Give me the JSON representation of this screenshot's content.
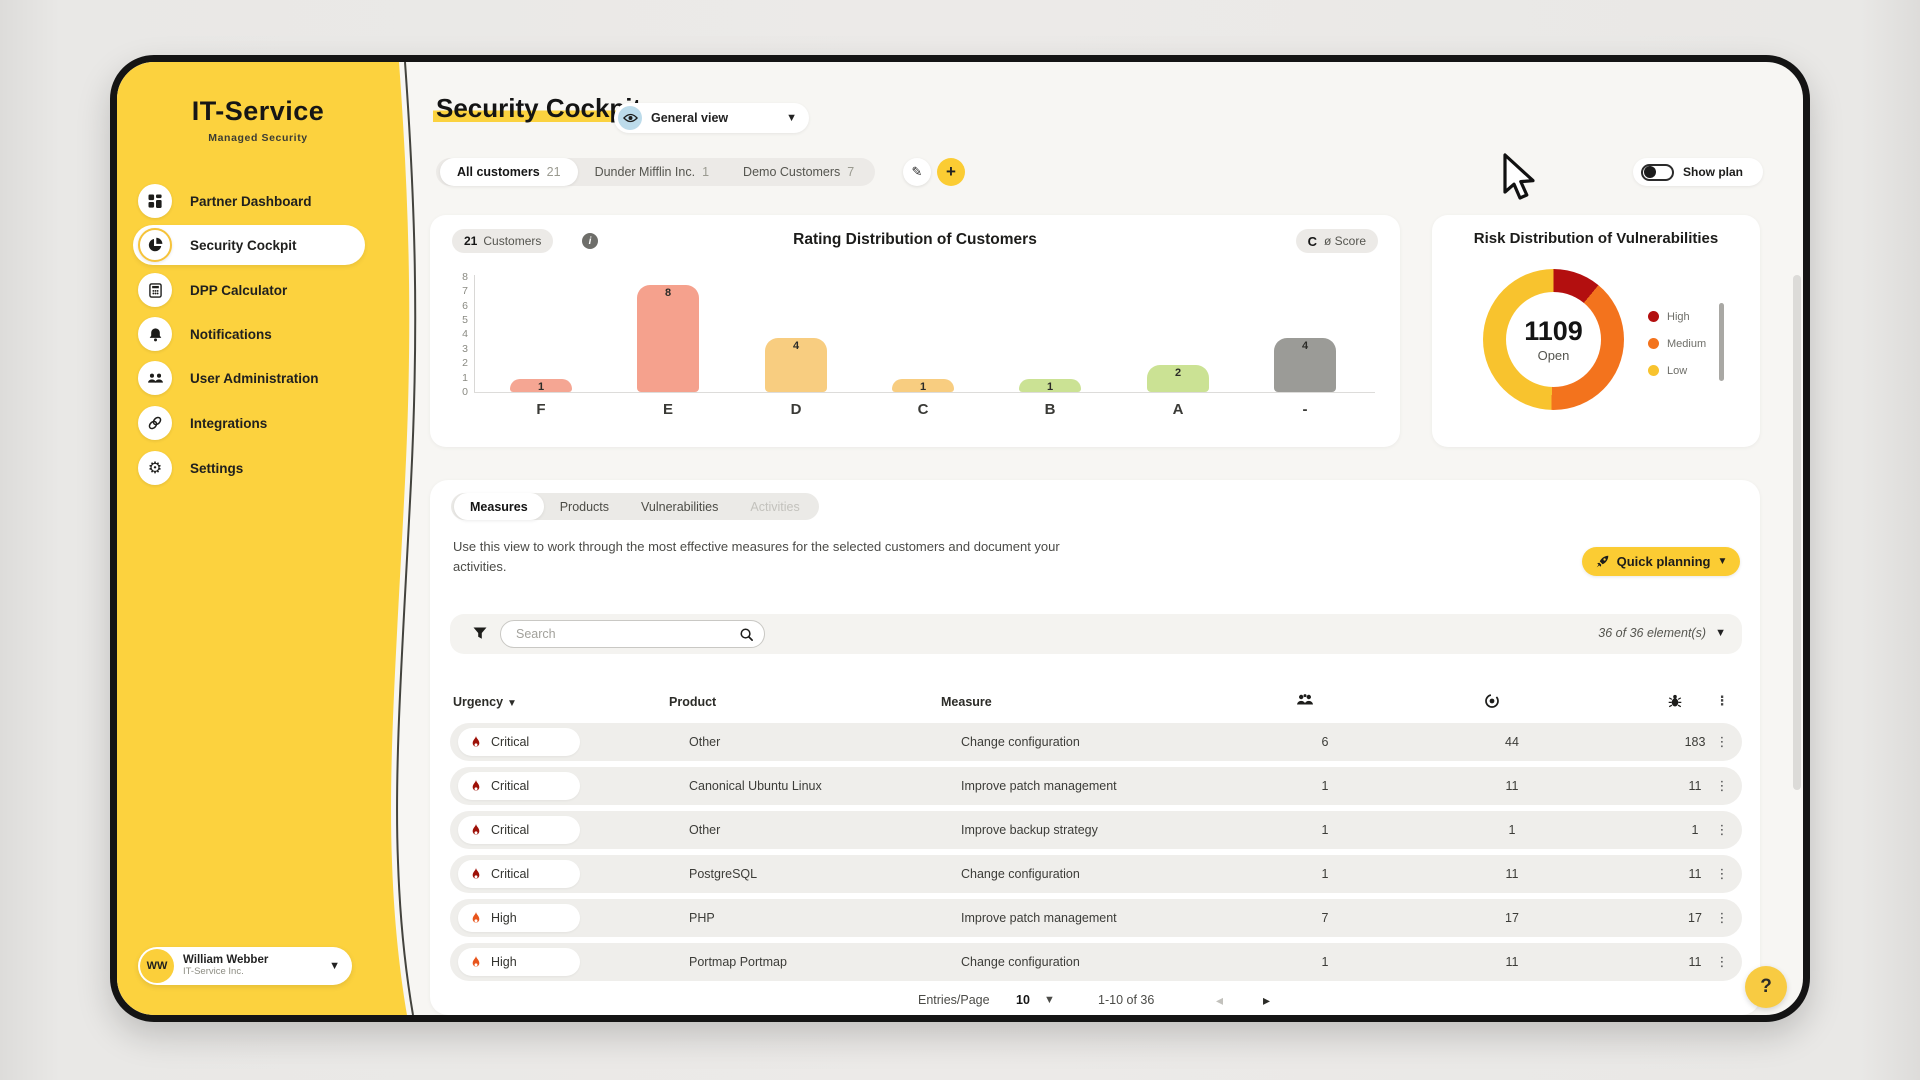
{
  "app": {
    "brand": "IT-Service",
    "brand_sub": "Managed Security",
    "page_title": "Security Cockpit",
    "view_selector_label": "General view",
    "show_plan_label": "Show plan",
    "help_label": "?"
  },
  "sidebar": {
    "items": [
      {
        "label": "Partner Dashboard",
        "icon": "dashboard-icon",
        "active": false
      },
      {
        "label": "Security Cockpit",
        "icon": "pie-chart-icon",
        "active": true
      },
      {
        "label": "DPP Calculator",
        "icon": "calculator-icon",
        "active": false
      },
      {
        "label": "Notifications",
        "icon": "bell-icon",
        "active": false
      },
      {
        "label": "User Administration",
        "icon": "users-icon",
        "active": false
      },
      {
        "label": "Integrations",
        "icon": "link-icon",
        "active": false
      },
      {
        "label": "Settings",
        "icon": "gear-icon",
        "active": false
      }
    ],
    "user": {
      "initials": "WW",
      "name": "William Webber",
      "company": "IT-Service Inc."
    }
  },
  "customer_tabs": [
    {
      "label": "All customers",
      "count": "21",
      "active": true
    },
    {
      "label": "Dunder Mifflin Inc.",
      "count": "1",
      "active": false
    },
    {
      "label": "Demo Customers",
      "count": "7",
      "active": false
    }
  ],
  "rating_card": {
    "customers_count": "21",
    "customers_label": "Customers",
    "info_glyph": "i",
    "title": "Rating Distribution of Customers",
    "score_value": "C",
    "score_label": "ø Score"
  },
  "risk_card": {
    "title": "Risk Distribution of Vulnerabilities",
    "center_value": "1109",
    "center_label": "Open"
  },
  "chart_data": [
    {
      "type": "bar",
      "title": "Rating Distribution of Customers",
      "categories": [
        "F",
        "E",
        "D",
        "C",
        "B",
        "A",
        "-"
      ],
      "values": [
        1,
        8,
        4,
        1,
        1,
        2,
        4
      ],
      "colors": [
        "#f5a693",
        "#f5a18d",
        "#f8cd80",
        "#f8cd80",
        "#cbe294",
        "#cbe294",
        "#9b9b97"
      ],
      "xlabel": "",
      "ylabel": "",
      "ylim": [
        0,
        8
      ],
      "yticks": [
        0,
        1,
        2,
        3,
        4,
        5,
        6,
        7,
        8
      ],
      "grid": false
    },
    {
      "type": "pie",
      "subtype": "donut",
      "title": "Risk Distribution of Vulnerabilities",
      "center_value": "1109",
      "center_label": "Open",
      "legend_position": "right",
      "slices": [
        {
          "label": "High",
          "pct": 11,
          "color": "#b30f0f"
        },
        {
          "label": "Medium",
          "pct": 39.5,
          "color": "#f3731d"
        },
        {
          "label": "Low",
          "pct": 49.5,
          "color": "#f8c32e"
        }
      ]
    }
  ],
  "measures_panel": {
    "tabs": [
      {
        "label": "Measures",
        "active": true,
        "disabled": false
      },
      {
        "label": "Products",
        "active": false,
        "disabled": false
      },
      {
        "label": "Vulnerabilities",
        "active": false,
        "disabled": false
      },
      {
        "label": "Activities",
        "active": false,
        "disabled": true
      }
    ],
    "description": "Use this view to work through the most effective measures for the selected customers and document your activities.",
    "quick_planning_label": "Quick planning",
    "search_placeholder": "Search",
    "elements_count": "36 of 36 element(s)",
    "table": {
      "text_headers": [
        "Urgency",
        "Product",
        "Measure"
      ],
      "icon_headers": [
        "customers-icon",
        "affected-products-icon",
        "vulnerabilities-icon"
      ],
      "rows": [
        {
          "urgency": "Critical",
          "product": "Other",
          "measure": "Change configuration",
          "customers": "6",
          "products": "44",
          "vulnerabilities": "183"
        },
        {
          "urgency": "Critical",
          "product": "Canonical Ubuntu Linux",
          "measure": "Improve patch management",
          "customers": "1",
          "products": "11",
          "vulnerabilities": "11"
        },
        {
          "urgency": "Critical",
          "product": "Other",
          "measure": "Improve backup strategy",
          "customers": "1",
          "products": "1",
          "vulnerabilities": "1"
        },
        {
          "urgency": "Critical",
          "product": "PostgreSQL",
          "measure": "Change configuration",
          "customers": "1",
          "products": "11",
          "vulnerabilities": "11"
        },
        {
          "urgency": "High",
          "product": "PHP",
          "measure": "Improve patch management",
          "customers": "7",
          "products": "17",
          "vulnerabilities": "17"
        },
        {
          "urgency": "High",
          "product": "Portmap Portmap",
          "measure": "Change configuration",
          "customers": "1",
          "products": "11",
          "vulnerabilities": "11"
        }
      ]
    },
    "pagination": {
      "entries_label": "Entries/Page",
      "entries_value": "10",
      "range_label": "1-10 of 36"
    }
  },
  "colors": {
    "sidebar_yellow": "#fcd23e",
    "accent_yellow": "#fbcc33",
    "critical_flame": "#9e1108",
    "high_flame": "#e8551c",
    "risk_high": "#b30f0f",
    "risk_medium": "#f3731d",
    "risk_low": "#f8c32e"
  }
}
